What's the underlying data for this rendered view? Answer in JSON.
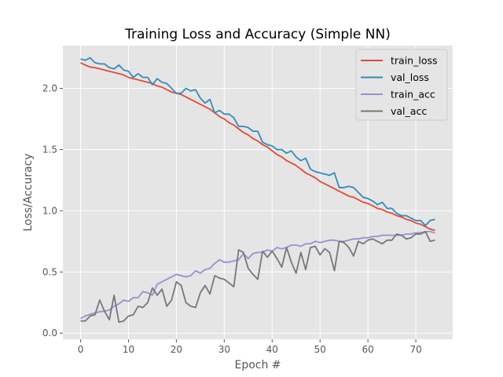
{
  "chart_data": {
    "type": "line",
    "title": "Training Loss and Accuracy (Simple NN)",
    "xlabel": "Epoch #",
    "ylabel": "Loss/Accuracy",
    "xlim": [
      -3.7,
      77.7
    ],
    "ylim": [
      -0.05,
      2.35
    ],
    "xticks": [
      0,
      10,
      20,
      30,
      40,
      50,
      60,
      70
    ],
    "yticks": [
      "0.0",
      "0.5",
      "1.0",
      "1.5",
      "2.0"
    ],
    "grid": true,
    "legend_position": "top-right",
    "background": "#E5E5E5",
    "series": [
      {
        "name": "train_loss",
        "color": "#E24A33",
        "values": [
          2.21,
          2.19,
          2.175,
          2.17,
          2.16,
          2.15,
          2.14,
          2.13,
          2.12,
          2.11,
          2.09,
          2.08,
          2.07,
          2.06,
          2.05,
          2.04,
          2.02,
          2.01,
          1.99,
          1.97,
          1.96,
          1.95,
          1.93,
          1.91,
          1.89,
          1.87,
          1.85,
          1.83,
          1.8,
          1.77,
          1.75,
          1.72,
          1.7,
          1.67,
          1.64,
          1.62,
          1.59,
          1.57,
          1.54,
          1.52,
          1.49,
          1.46,
          1.44,
          1.41,
          1.39,
          1.37,
          1.34,
          1.31,
          1.29,
          1.27,
          1.24,
          1.22,
          1.2,
          1.18,
          1.16,
          1.14,
          1.12,
          1.11,
          1.09,
          1.07,
          1.06,
          1.04,
          1.02,
          1.01,
          0.99,
          0.98,
          0.96,
          0.95,
          0.93,
          0.92,
          0.9,
          0.89,
          0.87,
          0.85,
          0.84
        ]
      },
      {
        "name": "val_loss",
        "color": "#348ABD",
        "values": [
          2.24,
          2.23,
          2.25,
          2.21,
          2.2,
          2.2,
          2.17,
          2.16,
          2.19,
          2.15,
          2.14,
          2.09,
          2.12,
          2.09,
          2.09,
          2.03,
          2.08,
          2.05,
          2.04,
          2.0,
          1.96,
          1.96,
          2.0,
          1.98,
          1.99,
          1.92,
          1.88,
          1.91,
          1.8,
          1.82,
          1.79,
          1.79,
          1.76,
          1.69,
          1.69,
          1.68,
          1.65,
          1.65,
          1.56,
          1.54,
          1.53,
          1.5,
          1.5,
          1.47,
          1.49,
          1.44,
          1.41,
          1.43,
          1.34,
          1.32,
          1.31,
          1.3,
          1.29,
          1.31,
          1.19,
          1.19,
          1.2,
          1.19,
          1.15,
          1.11,
          1.1,
          1.08,
          1.05,
          1.07,
          1.02,
          1.02,
          0.98,
          0.96,
          0.96,
          0.94,
          0.92,
          0.92,
          0.88,
          0.92,
          0.93
        ]
      },
      {
        "name": "train_acc",
        "color": "#988ED5",
        "values": [
          0.12,
          0.14,
          0.155,
          0.165,
          0.175,
          0.18,
          0.19,
          0.22,
          0.24,
          0.27,
          0.26,
          0.29,
          0.29,
          0.34,
          0.33,
          0.31,
          0.4,
          0.42,
          0.44,
          0.46,
          0.48,
          0.47,
          0.46,
          0.47,
          0.51,
          0.49,
          0.52,
          0.53,
          0.57,
          0.6,
          0.58,
          0.58,
          0.59,
          0.6,
          0.65,
          0.61,
          0.65,
          0.66,
          0.66,
          0.68,
          0.67,
          0.7,
          0.69,
          0.7,
          0.72,
          0.72,
          0.71,
          0.73,
          0.73,
          0.75,
          0.74,
          0.75,
          0.76,
          0.76,
          0.75,
          0.75,
          0.76,
          0.77,
          0.77,
          0.78,
          0.78,
          0.79,
          0.79,
          0.8,
          0.8,
          0.8,
          0.8,
          0.8,
          0.81,
          0.81,
          0.82,
          0.82,
          0.83,
          0.83,
          0.82
        ]
      },
      {
        "name": "val_acc",
        "color": "#777777",
        "values": [
          0.1,
          0.1,
          0.14,
          0.15,
          0.27,
          0.18,
          0.11,
          0.31,
          0.09,
          0.1,
          0.14,
          0.15,
          0.22,
          0.21,
          0.25,
          0.37,
          0.31,
          0.36,
          0.22,
          0.27,
          0.42,
          0.39,
          0.25,
          0.22,
          0.21,
          0.33,
          0.39,
          0.32,
          0.47,
          0.45,
          0.44,
          0.41,
          0.38,
          0.68,
          0.66,
          0.53,
          0.48,
          0.44,
          0.67,
          0.62,
          0.67,
          0.61,
          0.54,
          0.7,
          0.58,
          0.49,
          0.66,
          0.52,
          0.7,
          0.71,
          0.64,
          0.69,
          0.66,
          0.51,
          0.75,
          0.74,
          0.7,
          0.63,
          0.75,
          0.73,
          0.76,
          0.77,
          0.75,
          0.73,
          0.76,
          0.76,
          0.81,
          0.8,
          0.77,
          0.78,
          0.81,
          0.81,
          0.83,
          0.75,
          0.76
        ]
      }
    ]
  }
}
